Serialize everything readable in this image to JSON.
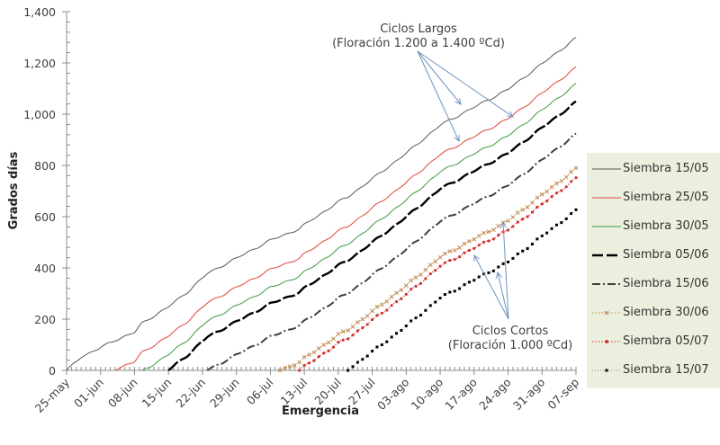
{
  "chart_data": {
    "type": "line",
    "title": "",
    "xlabel": "Emergencia",
    "ylabel": "Grados días",
    "ylim": [
      0,
      1400
    ],
    "yticks": [
      0,
      200,
      400,
      600,
      800,
      1000,
      1200,
      1400
    ],
    "ytick_labels": [
      "0",
      "200",
      "400",
      "600",
      "800",
      "1,000",
      "1,200",
      "1,400"
    ],
    "x_unit": "days since 25-may",
    "xlim": [
      0,
      105
    ],
    "xticks": [
      0,
      7,
      14,
      21,
      28,
      35,
      42,
      49,
      56,
      63,
      70,
      77,
      84,
      91,
      98,
      105
    ],
    "xtick_labels": [
      "25-may",
      "01-jun",
      "08-jun",
      "15-jun",
      "22-jun",
      "29-jun",
      "06-jul",
      "13-jul",
      "20-jul",
      "27-jul",
      "03-ago",
      "10-ago",
      "17-ago",
      "24-ago",
      "31-ago",
      "07-sep"
    ],
    "grid": false,
    "legend_position": "right",
    "reference_curve": {
      "x": [
        0,
        3,
        7,
        10,
        14,
        15.5,
        21,
        25,
        29,
        35,
        42,
        44,
        48,
        49,
        56,
        58,
        63,
        70,
        77,
        84,
        91,
        98,
        105
      ],
      "y": [
        0,
        55,
        90,
        120,
        150,
        185,
        250,
        310,
        380,
        440,
        510,
        525,
        555,
        570,
        660,
        680,
        750,
        850,
        960,
        1030,
        1100,
        1200,
        1300
      ]
    },
    "series": [
      {
        "name": "Siembra 15/05",
        "start_day": 0,
        "end_value": 1300,
        "color": "#595959",
        "style": "solid-thin"
      },
      {
        "name": "Siembra 25/05",
        "start_day": 10,
        "end_value": 1185,
        "color": "#e0453a",
        "style": "solid-thin"
      },
      {
        "name": "Siembra 30/05",
        "start_day": 15.5,
        "end_value": 1120,
        "color": "#3d9a3d",
        "style": "solid-thin"
      },
      {
        "name": "Siembra 05/06",
        "start_day": 21,
        "end_value": 1050,
        "color": "#000000",
        "style": "long-dash-thick"
      },
      {
        "name": "Siembra 15/06",
        "start_day": 29,
        "end_value": 925,
        "color": "#404040",
        "style": "dash-dot"
      },
      {
        "name": "Siembra 30/06",
        "start_day": 44,
        "end_value": 790,
        "color": "#c0874a",
        "style": "dotted-x"
      },
      {
        "name": "Siembra 05/07",
        "start_day": 48,
        "end_value": 752,
        "color": "#d03030",
        "style": "dotted-dot"
      },
      {
        "name": "Siembra 15/07",
        "start_day": 58,
        "end_value": 627,
        "color": "#000000",
        "style": "square-dot"
      }
    ],
    "annotations": [
      {
        "line1": "Ciclos Largos",
        "line2": "(Floración 1.200 a 1.400 ºCd)"
      },
      {
        "line1": "Ciclos Cortos",
        "line2": "(Floración 1.000 ºCd)"
      }
    ]
  }
}
